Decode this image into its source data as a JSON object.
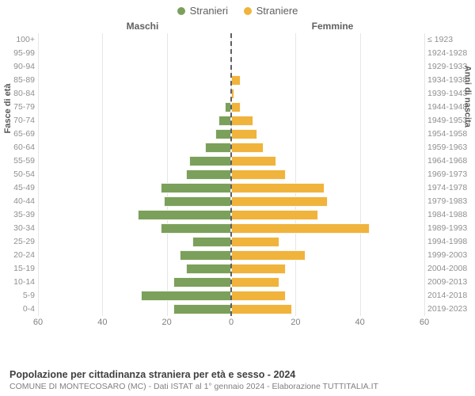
{
  "legend": {
    "male": {
      "label": "Stranieri",
      "color": "#7ba05b"
    },
    "female": {
      "label": "Straniere",
      "color": "#f0b33c"
    }
  },
  "headers": {
    "left": "Maschi",
    "right": "Femmine"
  },
  "axis_titles": {
    "left": "Fasce di età",
    "right": "Anni di nascita"
  },
  "chart": {
    "type": "population-pyramid",
    "xmax": 60,
    "xticks": [
      60,
      40,
      20,
      0,
      20,
      40,
      60
    ],
    "grid_color": "#e6e6e6",
    "background_color": "#ffffff",
    "bar_color_male": "#7ba05b",
    "bar_color_female": "#f0b33c",
    "rows": [
      {
        "age": "100+",
        "birth": "≤ 1923",
        "m": 0,
        "f": 0
      },
      {
        "age": "95-99",
        "birth": "1924-1928",
        "m": 0,
        "f": 0
      },
      {
        "age": "90-94",
        "birth": "1929-1933",
        "m": 0,
        "f": 0
      },
      {
        "age": "85-89",
        "birth": "1934-1938",
        "m": 0,
        "f": 3
      },
      {
        "age": "80-84",
        "birth": "1939-1943",
        "m": 0,
        "f": 1
      },
      {
        "age": "75-79",
        "birth": "1944-1948",
        "m": 2,
        "f": 3
      },
      {
        "age": "70-74",
        "birth": "1949-1953",
        "m": 4,
        "f": 7
      },
      {
        "age": "65-69",
        "birth": "1954-1958",
        "m": 5,
        "f": 8
      },
      {
        "age": "60-64",
        "birth": "1959-1963",
        "m": 8,
        "f": 10
      },
      {
        "age": "55-59",
        "birth": "1964-1968",
        "m": 13,
        "f": 14
      },
      {
        "age": "50-54",
        "birth": "1969-1973",
        "m": 14,
        "f": 17
      },
      {
        "age": "45-49",
        "birth": "1974-1978",
        "m": 22,
        "f": 29
      },
      {
        "age": "40-44",
        "birth": "1979-1983",
        "m": 21,
        "f": 30
      },
      {
        "age": "35-39",
        "birth": "1984-1988",
        "m": 29,
        "f": 27
      },
      {
        "age": "30-34",
        "birth": "1989-1993",
        "m": 22,
        "f": 43
      },
      {
        "age": "25-29",
        "birth": "1994-1998",
        "m": 12,
        "f": 15
      },
      {
        "age": "20-24",
        "birth": "1999-2003",
        "m": 16,
        "f": 23
      },
      {
        "age": "15-19",
        "birth": "2004-2008",
        "m": 14,
        "f": 17
      },
      {
        "age": "10-14",
        "birth": "2009-2013",
        "m": 18,
        "f": 15
      },
      {
        "age": "5-9",
        "birth": "2014-2018",
        "m": 28,
        "f": 17
      },
      {
        "age": "0-4",
        "birth": "2019-2023",
        "m": 18,
        "f": 19
      }
    ]
  },
  "footer": {
    "title": "Popolazione per cittadinanza straniera per età e sesso - 2024",
    "subtitle": "COMUNE DI MONTECOSARO (MC) - Dati ISTAT al 1° gennaio 2024 - Elaborazione TUTTITALIA.IT"
  }
}
